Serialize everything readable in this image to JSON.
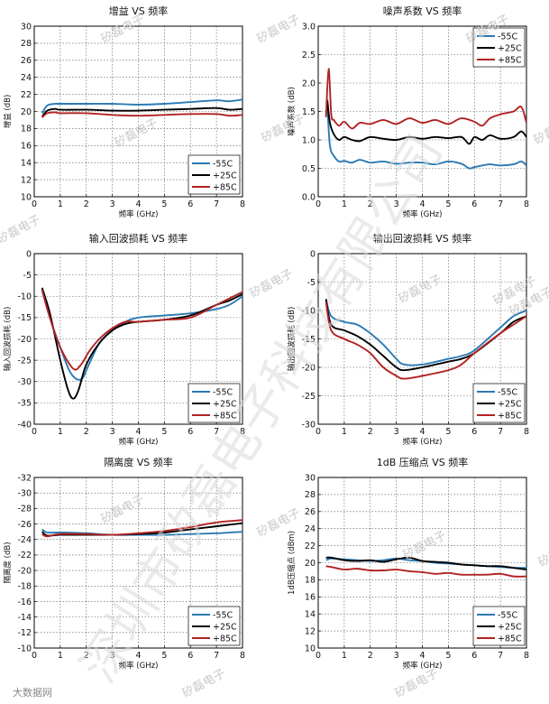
{
  "watermarks": {
    "small": "矽磊电子",
    "diagonal": "深圳市矽磊电子科技有限公司",
    "footer": "大数据网"
  },
  "colors": {
    "m55": "#2a7ab4",
    "p25": "#000000",
    "p85": "#b22222"
  },
  "chart_data": [
    {
      "type": "line",
      "title": "增益 VS 频率",
      "xlabel": "频率 (GHz)",
      "ylabel": "增益 (dB)",
      "xlim": [
        0,
        8
      ],
      "ylim": [
        10,
        30
      ],
      "xticks": [
        0,
        1,
        2,
        3,
        4,
        5,
        6,
        7,
        8
      ],
      "yticks": [
        10,
        12,
        14,
        16,
        18,
        20,
        22,
        24,
        26,
        28,
        30
      ],
      "legend": "bottom-right",
      "series": [
        {
          "name": "-55C",
          "color": "m55",
          "x": [
            0.3,
            0.5,
            0.8,
            1,
            2,
            3,
            4,
            5,
            6,
            7,
            7.5,
            8
          ],
          "y": [
            19.8,
            20.7,
            20.9,
            20.9,
            20.9,
            20.9,
            20.8,
            20.9,
            21.1,
            21.3,
            21.2,
            21.4
          ]
        },
        {
          "name": "+25C",
          "color": "p25",
          "x": [
            0.3,
            0.5,
            0.8,
            1,
            2,
            3,
            4,
            5,
            6,
            7,
            7.5,
            8
          ],
          "y": [
            19.4,
            20.1,
            20.3,
            20.2,
            20.2,
            20.1,
            20.1,
            20.2,
            20.3,
            20.4,
            20.2,
            20.3
          ]
        },
        {
          "name": "+85C",
          "color": "p85",
          "x": [
            0.3,
            0.5,
            0.8,
            1,
            2,
            3,
            4,
            5,
            6,
            7,
            7.5,
            8
          ],
          "y": [
            19.3,
            19.8,
            19.9,
            19.8,
            19.8,
            19.6,
            19.5,
            19.6,
            19.7,
            19.7,
            19.5,
            19.6
          ]
        }
      ]
    },
    {
      "type": "line",
      "title": "噪声系数 VS 频率",
      "xlabel": "频率 (GHz)",
      "ylabel": "噪声系数 (dB)",
      "xlim": [
        0,
        8
      ],
      "ylim": [
        0,
        3
      ],
      "xticks": [
        0,
        1,
        2,
        3,
        4,
        5,
        6,
        7,
        8
      ],
      "yticks": [
        0,
        0.5,
        1,
        1.5,
        2,
        2.5,
        3
      ],
      "ytick_labels": [
        "0.0",
        "0.5",
        "1.0",
        "1.5",
        "2.0",
        "2.5",
        "3.0"
      ],
      "legend": "top-right",
      "series": [
        {
          "name": "-55C",
          "color": "m55",
          "x": [
            0.35,
            0.45,
            0.6,
            0.8,
            1,
            1.3,
            1.6,
            2,
            2.5,
            3,
            3.5,
            4,
            4.5,
            5,
            5.5,
            5.8,
            6,
            6.3,
            6.6,
            7,
            7.5,
            7.8,
            8
          ],
          "y": [
            1.6,
            0.9,
            0.72,
            0.62,
            0.63,
            0.6,
            0.65,
            0.6,
            0.62,
            0.58,
            0.6,
            0.6,
            0.57,
            0.62,
            0.58,
            0.5,
            0.52,
            0.55,
            0.57,
            0.55,
            0.57,
            0.62,
            0.55
          ]
        },
        {
          "name": "+25C",
          "color": "p25",
          "x": [
            0.35,
            0.45,
            0.6,
            0.8,
            1,
            1.3,
            1.6,
            2,
            2.5,
            3,
            3.5,
            4,
            4.5,
            5,
            5.5,
            5.8,
            6,
            6.3,
            6.6,
            7,
            7.5,
            7.8,
            8
          ],
          "y": [
            1.7,
            1.3,
            1.1,
            1.0,
            1.05,
            1.0,
            0.98,
            1.05,
            1.02,
            1.0,
            1.05,
            1.02,
            1.05,
            1.03,
            1.05,
            0.93,
            1.05,
            1.0,
            1.08,
            1.02,
            1.05,
            1.15,
            1.05
          ]
        },
        {
          "name": "+85C",
          "color": "p85",
          "x": [
            0.3,
            0.4,
            0.5,
            0.6,
            0.8,
            1,
            1.3,
            1.6,
            2,
            2.5,
            3,
            3.5,
            4,
            4.5,
            5,
            5.5,
            6,
            6.3,
            6.6,
            7,
            7.5,
            7.8,
            8
          ],
          "y": [
            1.4,
            2.25,
            1.45,
            1.35,
            1.25,
            1.32,
            1.2,
            1.3,
            1.28,
            1.35,
            1.28,
            1.38,
            1.3,
            1.35,
            1.28,
            1.38,
            1.32,
            1.25,
            1.38,
            1.45,
            1.5,
            1.58,
            1.3
          ]
        }
      ]
    },
    {
      "type": "line",
      "title": "输入回波损耗 VS 频率",
      "xlabel": "频率 (GHz)",
      "ylabel": "输入回波损耗 (dB)",
      "xlim": [
        0,
        8
      ],
      "ylim": [
        -40,
        0
      ],
      "xticks": [
        0,
        1,
        2,
        3,
        4,
        5,
        6,
        7,
        8
      ],
      "yticks": [
        -40,
        -35,
        -30,
        -25,
        -20,
        -15,
        -10,
        -5,
        0
      ],
      "legend": "bottom-right",
      "series": [
        {
          "name": "-55C",
          "color": "m55",
          "x": [
            0.3,
            0.6,
            1,
            1.4,
            1.8,
            2.1,
            2.5,
            3,
            3.5,
            4,
            5,
            6,
            7,
            7.5,
            8
          ],
          "y": [
            -8.5,
            -15,
            -22,
            -28,
            -29.5,
            -26,
            -21,
            -18,
            -16,
            -15,
            -14.5,
            -14,
            -13,
            -12,
            -10
          ]
        },
        {
          "name": "+25C",
          "color": "p25",
          "x": [
            0.3,
            0.6,
            1,
            1.3,
            1.5,
            1.7,
            2,
            2.5,
            3,
            3.5,
            4,
            5,
            6,
            7,
            7.5,
            8
          ],
          "y": [
            -8,
            -14,
            -25,
            -32,
            -34,
            -32,
            -26,
            -21,
            -18,
            -16.5,
            -16,
            -15.5,
            -14.5,
            -12,
            -11,
            -9.5
          ]
        },
        {
          "name": "+85C",
          "color": "p85",
          "x": [
            0.3,
            0.6,
            1,
            1.5,
            1.8,
            2.1,
            2.5,
            3,
            3.5,
            4,
            5,
            6,
            7,
            7.5,
            8
          ],
          "y": [
            -8.5,
            -15,
            -22,
            -27,
            -26,
            -23,
            -20,
            -17.5,
            -16,
            -16,
            -15.5,
            -15,
            -12,
            -10.5,
            -9
          ]
        }
      ]
    },
    {
      "type": "line",
      "title": "输出回波损耗 VS 频率",
      "xlabel": "频率 (GHz)",
      "ylabel": "输出回波损耗 (dB)",
      "xlim": [
        0,
        8
      ],
      "ylim": [
        -30,
        0
      ],
      "xticks": [
        0,
        1,
        2,
        3,
        4,
        5,
        6,
        7,
        8
      ],
      "yticks": [
        -30,
        -25,
        -20,
        -15,
        -10,
        -5,
        0
      ],
      "legend": "bottom-right",
      "series": [
        {
          "name": "-55C",
          "color": "m55",
          "x": [
            0.3,
            0.5,
            1,
            1.5,
            2,
            2.5,
            3,
            3.3,
            4,
            5,
            5.5,
            6,
            7,
            7.5,
            8
          ],
          "y": [
            -8,
            -11,
            -12,
            -12.5,
            -14,
            -16,
            -18.5,
            -19.5,
            -19.5,
            -18.5,
            -18,
            -17,
            -13,
            -11,
            -10
          ]
        },
        {
          "name": "+25C",
          "color": "p25",
          "x": [
            0.3,
            0.5,
            1,
            1.5,
            2,
            2.5,
            3,
            3.3,
            4,
            5,
            5.5,
            6,
            7,
            7.5,
            8
          ],
          "y": [
            -8,
            -12.5,
            -13.5,
            -14.5,
            -16,
            -18,
            -20,
            -20.5,
            -20,
            -19,
            -18.5,
            -17.5,
            -14,
            -12,
            -11
          ]
        },
        {
          "name": "+85C",
          "color": "p85",
          "x": [
            0.3,
            0.5,
            1,
            1.5,
            2,
            2.5,
            3,
            3.3,
            4,
            5,
            5.5,
            6,
            7,
            7.5,
            8
          ],
          "y": [
            -8.5,
            -13.5,
            -15,
            -16,
            -17.5,
            -20,
            -21.5,
            -22,
            -21.5,
            -20.5,
            -19.5,
            -17.5,
            -14,
            -12.5,
            -11
          ]
        }
      ]
    },
    {
      "type": "line",
      "title": "隔离度 VS 频率",
      "xlabel": "频率 (GHz)",
      "ylabel": "隔离度 (dB)",
      "xlim": [
        0,
        8
      ],
      "ylim": [
        -10,
        -32
      ],
      "xticks": [
        0,
        1,
        2,
        3,
        4,
        5,
        6,
        7,
        8
      ],
      "yticks": [
        -10,
        -12,
        -14,
        -16,
        -18,
        -20,
        -22,
        -24,
        -26,
        -28,
        -30,
        -32
      ],
      "legend": "bottom-right",
      "series": [
        {
          "name": "-55C",
          "color": "m55",
          "x": [
            0.3,
            0.5,
            1,
            2,
            3,
            4,
            5,
            6,
            7,
            8
          ],
          "y": [
            -25.3,
            -24.9,
            -24.9,
            -24.8,
            -24.6,
            -24.6,
            -24.6,
            -24.7,
            -24.8,
            -25.0
          ]
        },
        {
          "name": "+25C",
          "color": "p25",
          "x": [
            0.3,
            0.5,
            1,
            2,
            3,
            4,
            5,
            6,
            7,
            8
          ],
          "y": [
            -25.0,
            -24.5,
            -24.6,
            -24.6,
            -24.6,
            -24.7,
            -24.9,
            -25.3,
            -25.7,
            -26.1
          ]
        },
        {
          "name": "+85C",
          "color": "p85",
          "x": [
            0.3,
            0.5,
            1,
            2,
            3,
            4,
            5,
            6,
            7,
            8
          ],
          "y": [
            -24.7,
            -24.4,
            -24.7,
            -24.7,
            -24.6,
            -24.8,
            -25.1,
            -25.6,
            -26.2,
            -26.5
          ]
        }
      ]
    },
    {
      "type": "line",
      "title": "1dB 压缩点 VS 频率",
      "xlabel": "频率 (GHz)",
      "ylabel": "1dB压缩点 (dBm)",
      "xlim": [
        0,
        8
      ],
      "ylim": [
        10,
        30
      ],
      "xticks": [
        0,
        1,
        2,
        3,
        4,
        5,
        6,
        7,
        8
      ],
      "yticks": [
        10,
        12,
        14,
        16,
        18,
        20,
        22,
        24,
        26,
        28,
        30
      ],
      "legend": "bottom-right",
      "series": [
        {
          "name": "-55C",
          "color": "m55",
          "x": [
            0.3,
            0.5,
            1,
            1.5,
            2,
            2.5,
            3,
            3.5,
            4,
            4.5,
            5,
            5.5,
            6,
            6.5,
            7,
            7.5,
            8
          ],
          "y": [
            20.3,
            20.5,
            20.4,
            20.3,
            20.2,
            20.3,
            20.5,
            20.3,
            20.2,
            20.0,
            19.9,
            19.8,
            19.7,
            19.6,
            19.5,
            19.4,
            19.4
          ]
        },
        {
          "name": "+25C",
          "color": "p25",
          "x": [
            0.3,
            0.5,
            1,
            1.5,
            2,
            2.5,
            3,
            3.5,
            4,
            4.5,
            5,
            5.5,
            6,
            6.5,
            7,
            7.5,
            8
          ],
          "y": [
            20.6,
            20.6,
            20.3,
            20.2,
            20.3,
            20.1,
            20.4,
            20.6,
            20.2,
            20.1,
            20.0,
            19.8,
            19.7,
            19.6,
            19.6,
            19.4,
            19.2
          ]
        },
        {
          "name": "+85C",
          "color": "p85",
          "x": [
            0.3,
            0.5,
            1,
            1.5,
            2,
            2.5,
            3,
            3.5,
            4,
            4.5,
            5,
            5.5,
            6,
            6.5,
            7,
            7.5,
            8
          ],
          "y": [
            19.6,
            19.5,
            19.2,
            19.3,
            19.1,
            19.1,
            19.2,
            19.0,
            18.9,
            18.7,
            18.8,
            18.6,
            18.6,
            18.6,
            18.7,
            18.4,
            18.4
          ]
        }
      ]
    }
  ]
}
